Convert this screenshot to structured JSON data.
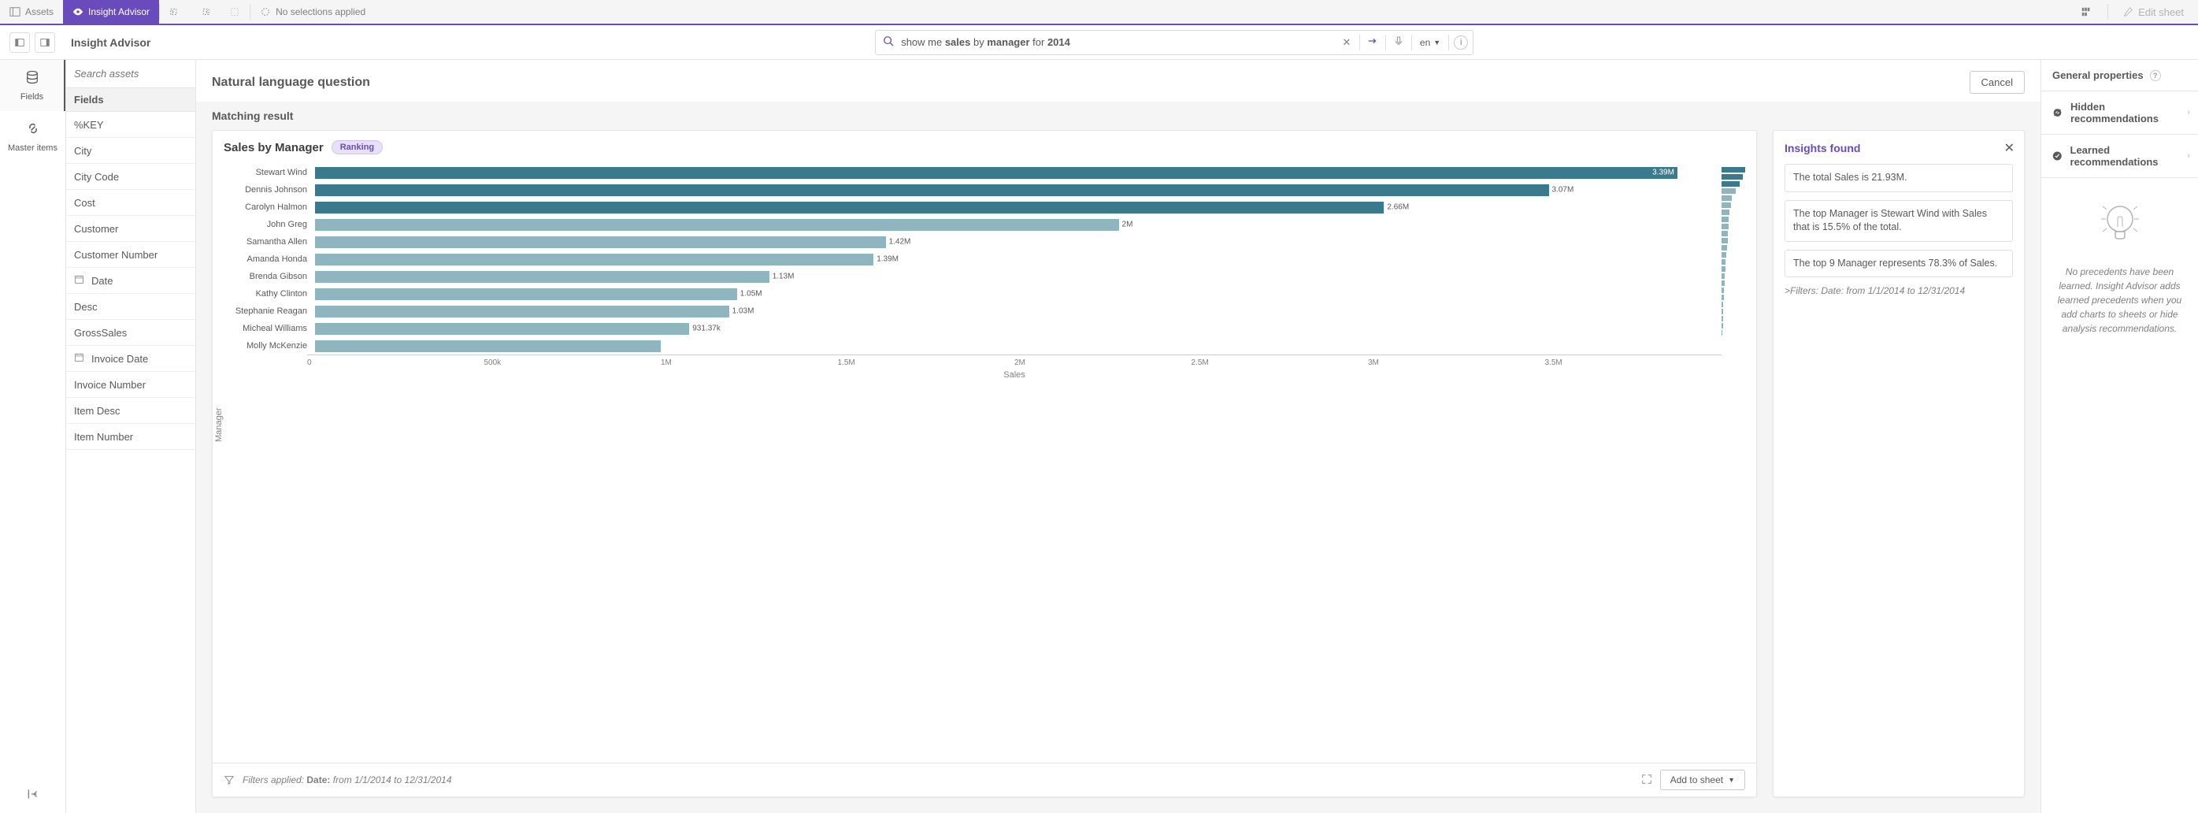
{
  "toolbar": {
    "assets_label": "Assets",
    "insight_advisor_label": "Insight Advisor",
    "no_selections_label": "No selections applied",
    "edit_sheet_label": "Edit sheet"
  },
  "subheader": {
    "title": "Insight Advisor",
    "search_prefix": "show me ",
    "search_bold1": "sales",
    "search_mid": " by ",
    "search_bold2": "manager",
    "search_mid2": " for ",
    "search_bold3": "2014",
    "search_full": "show me sales by manager for 2014",
    "lang": "en"
  },
  "left_nav": {
    "fields_label": "Fields",
    "master_items_label": "Master items"
  },
  "fields_panel": {
    "search_placeholder": "Search assets",
    "section_label": "Fields",
    "items": [
      {
        "label": "%KEY",
        "icon": ""
      },
      {
        "label": "City",
        "icon": ""
      },
      {
        "label": "City Code",
        "icon": ""
      },
      {
        "label": "Cost",
        "icon": ""
      },
      {
        "label": "Customer",
        "icon": ""
      },
      {
        "label": "Customer Number",
        "icon": ""
      },
      {
        "label": "Date",
        "icon": "date"
      },
      {
        "label": "Desc",
        "icon": ""
      },
      {
        "label": "GrossSales",
        "icon": ""
      },
      {
        "label": "Invoice Date",
        "icon": "date"
      },
      {
        "label": "Invoice Number",
        "icon": ""
      },
      {
        "label": "Item Desc",
        "icon": ""
      },
      {
        "label": "Item Number",
        "icon": ""
      }
    ]
  },
  "content": {
    "question_header": "Natural language question",
    "cancel_label": "Cancel",
    "matching_label": "Matching result"
  },
  "chart": {
    "title": "Sales by Manager",
    "pill_label": "Ranking",
    "type": "bar-horizontal",
    "y_axis_label": "Manager",
    "x_axis_label": "Sales",
    "x_max": 3500000,
    "x_ticks": [
      "0",
      "500k",
      "1M",
      "1.5M",
      "2M",
      "2.5M",
      "3M",
      "3.5M"
    ],
    "bar_color_dark": "#3a7a8c",
    "bar_color_light": "#8fb5be",
    "background_color": "#ffffff",
    "data": [
      {
        "label": "Stewart Wind",
        "value": 3390000,
        "display": "3.39M",
        "dark": true,
        "value_inside": true
      },
      {
        "label": "Dennis Johnson",
        "value": 3070000,
        "display": "3.07M",
        "dark": true,
        "value_inside": false
      },
      {
        "label": "Carolyn Halmon",
        "value": 2660000,
        "display": "2.66M",
        "dark": true,
        "value_inside": false
      },
      {
        "label": "John Greg",
        "value": 2000000,
        "display": "2M",
        "dark": false,
        "value_inside": false
      },
      {
        "label": "Samantha Allen",
        "value": 1420000,
        "display": "1.42M",
        "dark": false,
        "value_inside": false
      },
      {
        "label": "Amanda Honda",
        "value": 1390000,
        "display": "1.39M",
        "dark": false,
        "value_inside": false
      },
      {
        "label": "Brenda Gibson",
        "value": 1130000,
        "display": "1.13M",
        "dark": false,
        "value_inside": false
      },
      {
        "label": "Kathy Clinton",
        "value": 1050000,
        "display": "1.05M",
        "dark": false,
        "value_inside": false
      },
      {
        "label": "Stephanie Reagan",
        "value": 1030000,
        "display": "1.03M",
        "dark": false,
        "value_inside": false
      },
      {
        "label": "Micheal Williams",
        "value": 931370,
        "display": "931.37k",
        "dark": false,
        "value_inside": false
      },
      {
        "label": "Molly McKenzie",
        "value": 860000,
        "display": "",
        "dark": false,
        "value_inside": false
      }
    ],
    "mini_bars": [
      {
        "w": 100,
        "dark": true
      },
      {
        "w": 91,
        "dark": true
      },
      {
        "w": 78,
        "dark": true
      },
      {
        "w": 59,
        "dark": false
      },
      {
        "w": 42,
        "dark": false
      },
      {
        "w": 41,
        "dark": false
      },
      {
        "w": 33,
        "dark": false
      },
      {
        "w": 31,
        "dark": false
      },
      {
        "w": 30,
        "dark": false
      },
      {
        "w": 27,
        "dark": false
      },
      {
        "w": 25,
        "dark": false
      },
      {
        "w": 22,
        "dark": false
      },
      {
        "w": 20,
        "dark": false
      },
      {
        "w": 18,
        "dark": false
      },
      {
        "w": 16,
        "dark": false
      },
      {
        "w": 14,
        "dark": false
      },
      {
        "w": 12,
        "dark": false
      },
      {
        "w": 10,
        "dark": false
      },
      {
        "w": 9,
        "dark": false
      },
      {
        "w": 8,
        "dark": false
      },
      {
        "w": 7,
        "dark": false
      },
      {
        "w": 6,
        "dark": false
      },
      {
        "w": 5,
        "dark": false
      },
      {
        "w": 4,
        "dark": false
      }
    ],
    "footer_prefix": "Filters applied:",
    "footer_bold": "Date:",
    "footer_value": "from 1/1/2014 to 12/31/2014",
    "add_to_sheet_label": "Add to sheet"
  },
  "insights": {
    "title": "Insights found",
    "items": [
      "The total Sales is 21.93M.",
      "The top Manager is Stewart Wind with Sales that is 15.5% of the total.",
      "The top 9 Manager represents 78.3% of Sales."
    ],
    "filter_text": ">Filters: Date: from 1/1/2014 to 12/31/2014"
  },
  "right_panel": {
    "header": "General properties",
    "hidden_label": "Hidden recommendations",
    "learned_label": "Learned recommendations",
    "empty_text": "No precedents have been learned. Insight Advisor adds learned precedents when you add charts to sheets or hide analysis recommendations."
  }
}
